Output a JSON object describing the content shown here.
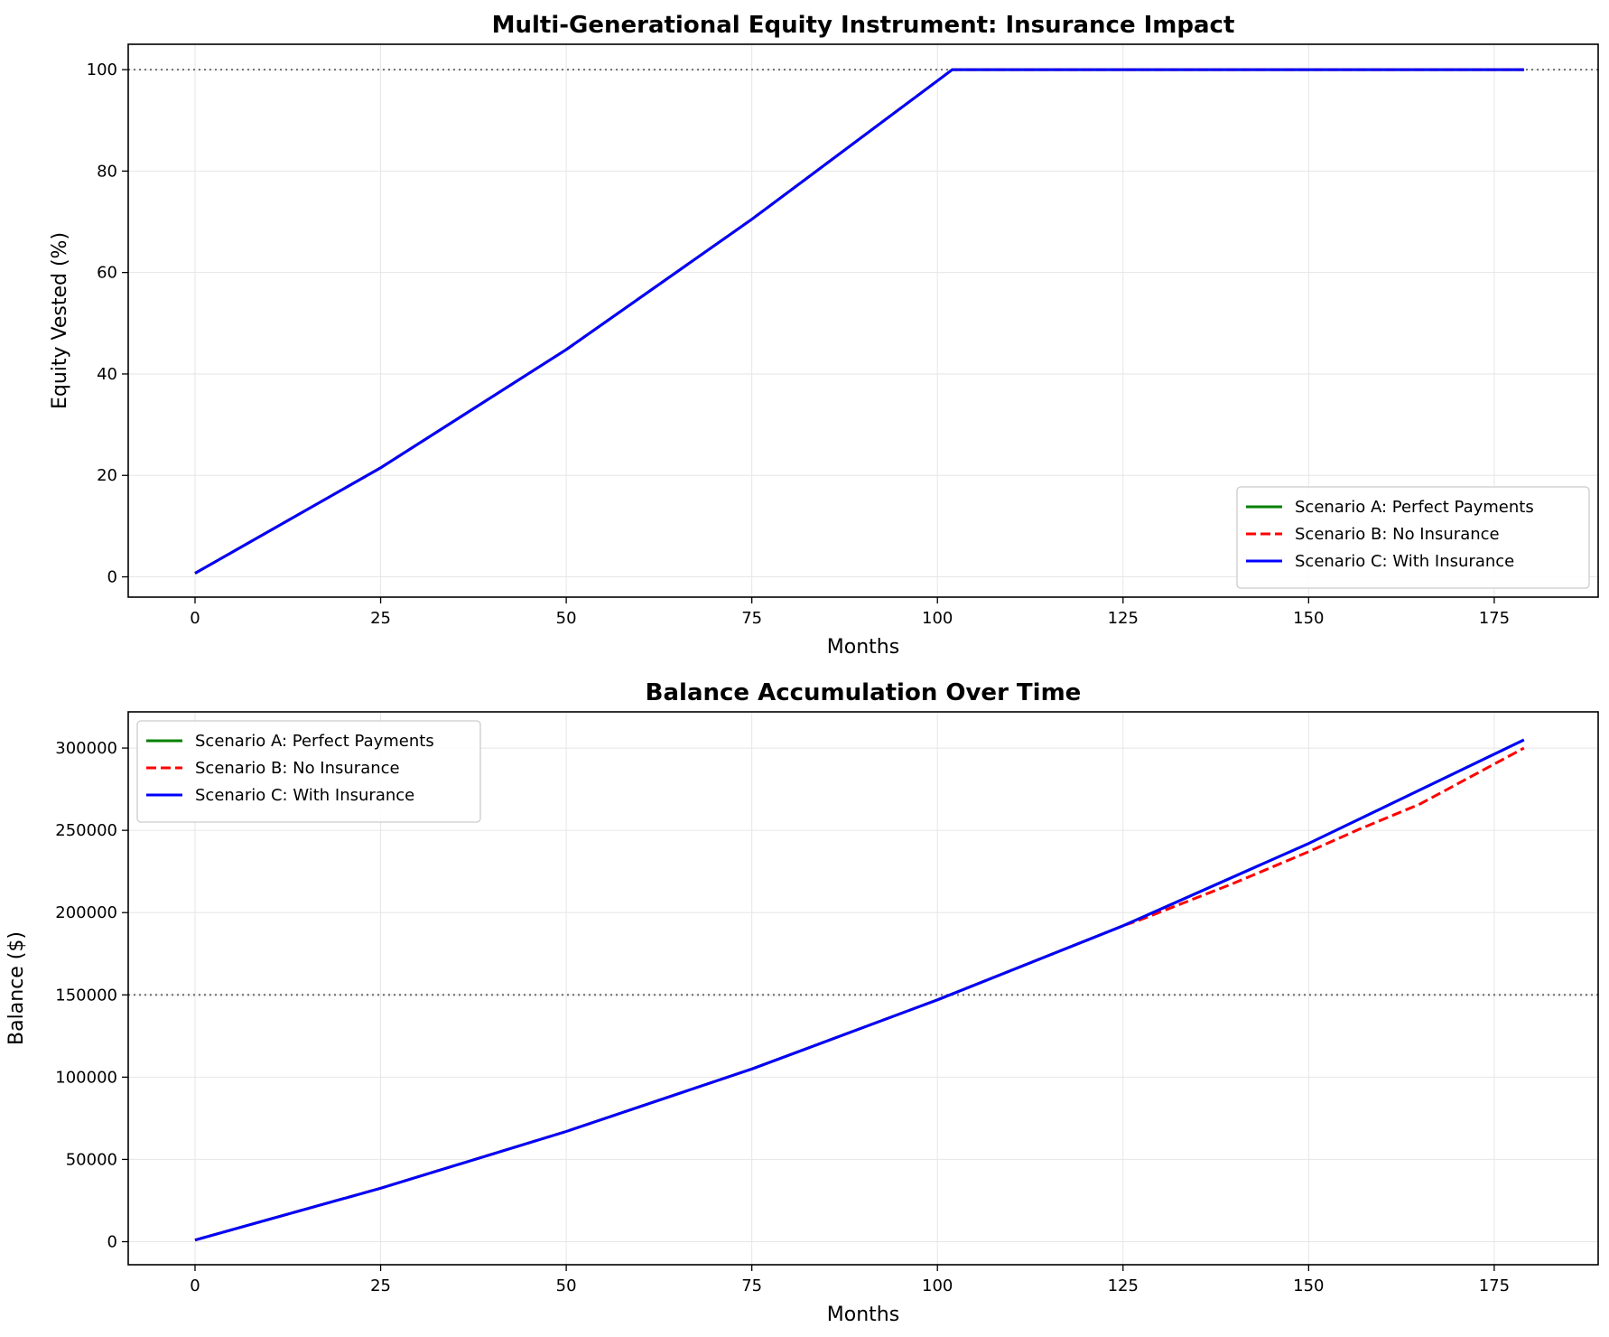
{
  "chart_data": [
    {
      "type": "line",
      "title": "Multi-Generational Equity Instrument: Insurance Impact",
      "xlabel": "Months",
      "ylabel": "Equity Vested (%)",
      "xlim": [
        -9,
        189
      ],
      "ylim": [
        -4,
        105
      ],
      "xticks": [
        0,
        25,
        50,
        75,
        100,
        125,
        150,
        175
      ],
      "yticks": [
        0,
        20,
        40,
        60,
        80,
        100
      ],
      "grid": true,
      "legend_position": "lower-right",
      "reference_line": {
        "y": 100,
        "style": "dotted",
        "color": "#777777"
      },
      "series": [
        {
          "name": "Scenario A: Perfect Payments",
          "color": "#008000",
          "dash": "solid",
          "x": [
            0,
            25,
            50,
            75,
            100,
            102,
            125,
            150,
            179
          ],
          "y": [
            0.7,
            21.5,
            44.8,
            70.5,
            97.8,
            100,
            100,
            100,
            100
          ]
        },
        {
          "name": "Scenario B: No Insurance",
          "color": "#ff0000",
          "dash": "dashed",
          "x": [
            0,
            25,
            50,
            75,
            100,
            102,
            125,
            150,
            179
          ],
          "y": [
            0.7,
            21.5,
            44.8,
            70.5,
            97.8,
            100,
            100,
            100,
            100
          ]
        },
        {
          "name": "Scenario C: With Insurance",
          "color": "#0000ff",
          "dash": "solid",
          "x": [
            0,
            25,
            50,
            75,
            100,
            102,
            125,
            150,
            179
          ],
          "y": [
            0.7,
            21.5,
            44.8,
            70.5,
            97.8,
            100,
            100,
            100,
            100
          ]
        }
      ]
    },
    {
      "type": "line",
      "title": "Balance Accumulation Over Time",
      "xlabel": "Months",
      "ylabel": "Balance ($)",
      "xlim": [
        -9,
        189
      ],
      "ylim": [
        -14000,
        322000
      ],
      "xticks": [
        0,
        25,
        50,
        75,
        100,
        125,
        150,
        175
      ],
      "yticks": [
        0,
        50000,
        100000,
        150000,
        200000,
        250000,
        300000
      ],
      "grid": true,
      "legend_position": "upper-left",
      "reference_line": {
        "y": 150000,
        "style": "dotted",
        "color": "#777777"
      },
      "series": [
        {
          "name": "Scenario A: Perfect Payments",
          "color": "#008000",
          "dash": "solid",
          "x": [
            0,
            25,
            50,
            75,
            100,
            125,
            150,
            179
          ],
          "y": [
            1000,
            32500,
            67000,
            105000,
            147000,
            192000,
            242000,
            305000
          ]
        },
        {
          "name": "Scenario B: No Insurance",
          "color": "#ff0000",
          "dash": "dashed",
          "x": [
            0,
            25,
            50,
            75,
            100,
            125,
            127,
            140,
            150,
            157,
            165,
            179
          ],
          "y": [
            1000,
            32500,
            67000,
            105000,
            147000,
            192000,
            195000,
            218000,
            237000,
            251000,
            266000,
            300000
          ]
        },
        {
          "name": "Scenario C: With Insurance",
          "color": "#0000ff",
          "dash": "solid",
          "x": [
            0,
            25,
            50,
            75,
            100,
            125,
            150,
            179
          ],
          "y": [
            1000,
            32500,
            67000,
            105000,
            147000,
            192000,
            242000,
            305000
          ]
        }
      ]
    }
  ]
}
